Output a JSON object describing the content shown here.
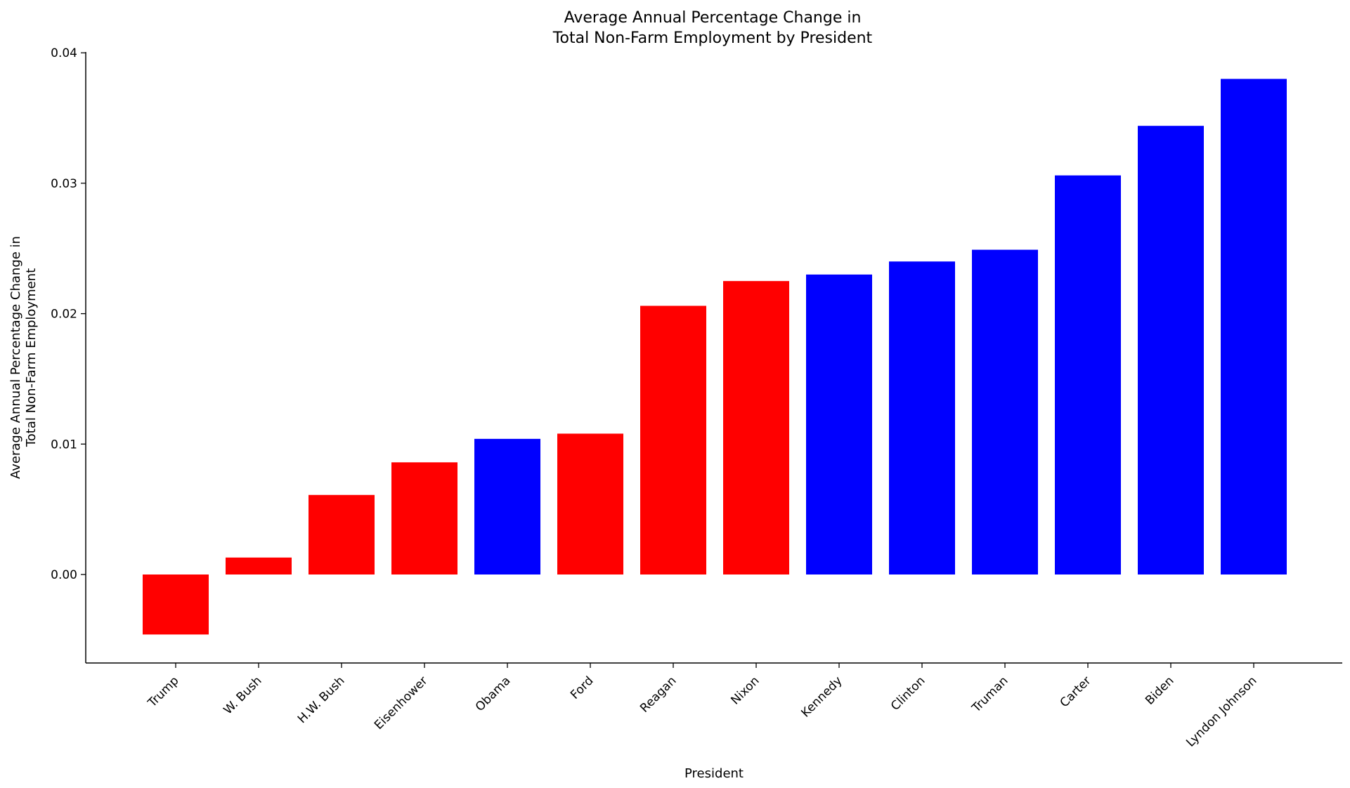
{
  "chart_data": {
    "type": "bar",
    "title": [
      "Average Annual Percentage Change in",
      "Total Non-Farm Employment by President"
    ],
    "xlabel": "President",
    "ylabel": [
      "Average Annual Percentage Change in",
      "Total Non-Farm Employment"
    ],
    "ylim": [
      -0.0067,
      0.0401
    ],
    "yticks": [
      "0.00",
      "0.01",
      "0.02",
      "0.03",
      "0.04"
    ],
    "ytick_values": [
      0.0,
      0.01,
      0.02,
      0.03,
      0.04
    ],
    "grid": false,
    "categories": [
      "Trump",
      "W. Bush",
      "H.W. Bush",
      "Eisenhower",
      "Obama",
      "Ford",
      "Reagan",
      "Nixon",
      "Kennedy",
      "Clinton",
      "Truman",
      "Carter",
      "Biden",
      "Lyndon Johnson"
    ],
    "values": [
      -0.0046,
      0.0013,
      0.0061,
      0.0086,
      0.0104,
      0.0108,
      0.0206,
      0.0225,
      0.023,
      0.024,
      0.0249,
      0.0306,
      0.0344,
      0.038
    ],
    "party_colors": [
      "#ff0000",
      "#ff0000",
      "#ff0000",
      "#ff0000",
      "#0000ff",
      "#ff0000",
      "#ff0000",
      "#ff0000",
      "#0000ff",
      "#0000ff",
      "#0000ff",
      "#0000ff",
      "#0000ff",
      "#0000ff"
    ],
    "colors": {
      "republican": "#ff0000",
      "democrat": "#0000ff",
      "axis": "#000000"
    }
  }
}
